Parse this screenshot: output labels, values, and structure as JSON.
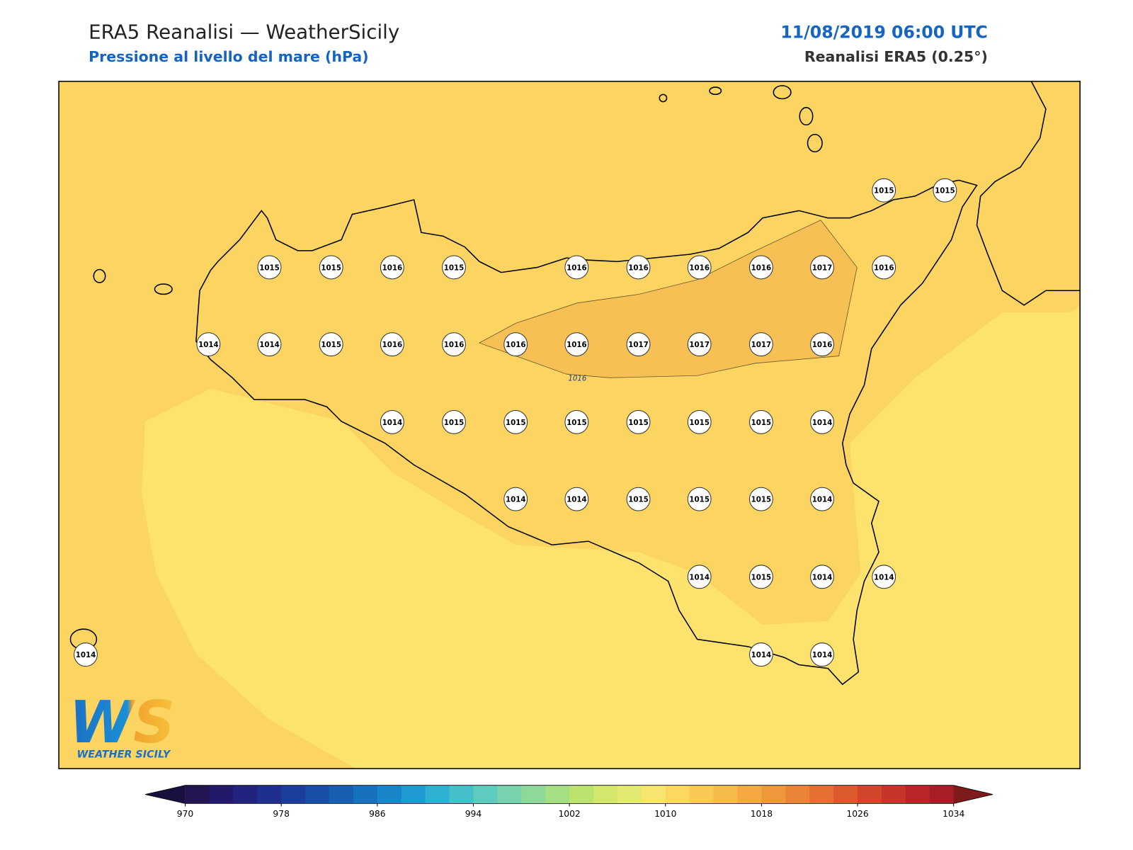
{
  "header": {
    "title": "ERA5 Reanalisi — WeatherSicily",
    "subtitle": "Pressione al livello del mare (hPa)",
    "date": "11/08/2019 06:00 UTC",
    "source": "Reanalisi ERA5 (0.25°)"
  },
  "map": {
    "contour_label": "1016",
    "stations": [
      1015,
      1015,
      1015,
      1015,
      1016,
      1015,
      1016,
      1016,
      1016,
      1016,
      1017,
      1016,
      1014,
      1014,
      1015,
      1016,
      1016,
      1016,
      1016,
      1017,
      1017,
      1017,
      1016,
      1014,
      1015,
      1015,
      1015,
      1015,
      1015,
      1015,
      1014,
      1014,
      1014,
      1015,
      1015,
      1015,
      1014,
      1014,
      1015,
      1014,
      1014,
      1014,
      1014,
      1014
    ]
  },
  "logo": {
    "mark": "WS",
    "text": "Weather Sicily"
  },
  "colorbar": {
    "ticks": [
      970,
      978,
      986,
      994,
      1002,
      1010,
      1018,
      1026,
      1034
    ],
    "colors": [
      "#221552",
      "#23196b",
      "#22227f",
      "#1f2f90",
      "#1b3d9e",
      "#1a4ea8",
      "#175fb3",
      "#1672bf",
      "#1986c9",
      "#209bd1",
      "#2eb0d2",
      "#45c0cb",
      "#5ecbbf",
      "#76d3ad",
      "#8ed998",
      "#a5df83",
      "#bde36f",
      "#d2e76b",
      "#e3ea72",
      "#f8e56f",
      "#fcd862",
      "#f9c855",
      "#f6b94b",
      "#f3a844",
      "#ef973d",
      "#ea8437",
      "#e47032",
      "#dc5b2e",
      "#d3462c",
      "#c8342a",
      "#bb2528",
      "#a81e26"
    ],
    "under": "#1a1040",
    "over": "#7f1a1d"
  }
}
